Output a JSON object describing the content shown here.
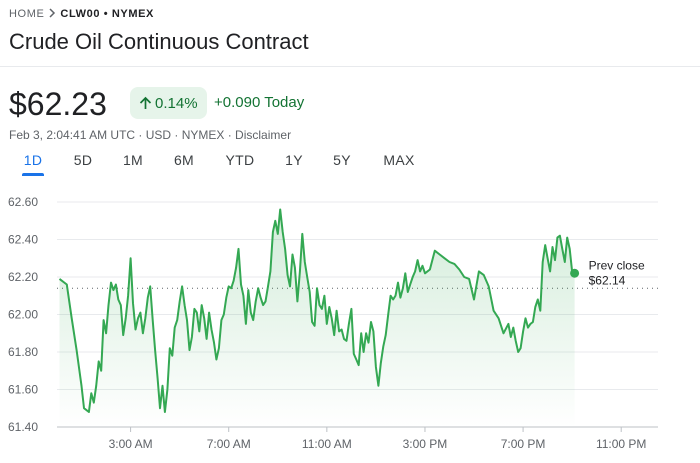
{
  "breadcrumb": {
    "home": "HOME",
    "separator_icon": "chevron-right-icon",
    "symbol": "CLW00 • NYMEX"
  },
  "title": "Crude Oil Continuous Contract",
  "quote": {
    "price": "$62.23",
    "change_percent": "0.14%",
    "change_direction_icon": "arrow-up-icon",
    "change_value": "+0.090",
    "change_period": "Today",
    "meta": "Feb 3, 2:04:41 AM UTC · USD · NYMEX · Disclaimer"
  },
  "tabs": [
    "1D",
    "5D",
    "1M",
    "6M",
    "YTD",
    "1Y",
    "5Y",
    "MAX"
  ],
  "active_tab": "1D",
  "colors": {
    "up": "#137333",
    "line": "#34a853",
    "accent": "#1a73e8",
    "badge_bg": "#e6f4ea"
  },
  "chart_data": {
    "type": "area",
    "y_ticks": [
      "62.60",
      "62.40",
      "62.20",
      "62.00",
      "61.80",
      "61.60",
      "61.40"
    ],
    "ylim": [
      61.4,
      62.6
    ],
    "x_ticks": [
      "3:00 AM",
      "7:00 AM",
      "11:00 AM",
      "3:00 PM",
      "7:00 PM",
      "11:00 PM"
    ],
    "x_tick_hours": [
      3,
      7,
      11,
      15,
      19,
      23
    ],
    "xlim_hours": [
      0,
      24.5
    ],
    "grid": true,
    "prev_close": {
      "label": "Prev close",
      "value": 62.14,
      "value_text": "$62.14"
    },
    "series": [
      {
        "x": [
          0.1,
          0.4,
          0.6,
          0.8,
          1.0,
          1.1,
          1.3,
          1.4,
          1.5,
          1.6,
          1.7,
          1.8,
          1.9,
          2.0,
          2.1,
          2.2,
          2.3,
          2.4,
          2.5,
          2.6,
          2.7,
          2.8,
          2.9,
          3.0,
          3.1,
          3.2,
          3.3,
          3.4,
          3.5,
          3.6,
          3.7,
          3.8,
          3.9,
          4.0,
          4.1,
          4.2,
          4.3,
          4.4,
          4.5,
          4.6,
          4.7,
          4.8,
          4.9,
          5.0,
          5.1,
          5.2,
          5.3,
          5.4,
          5.5,
          5.6,
          5.7,
          5.8,
          5.9,
          6.0,
          6.1,
          6.2,
          6.3,
          6.4,
          6.5,
          6.6,
          6.7,
          6.8,
          6.9,
          7.0,
          7.1,
          7.2,
          7.3,
          7.4,
          7.5,
          7.6,
          7.7,
          7.8,
          7.9,
          8.0,
          8.1,
          8.2,
          8.3,
          8.4,
          8.5,
          8.6,
          8.7,
          8.8,
          8.9,
          9.0,
          9.1,
          9.2,
          9.3,
          9.4,
          9.5,
          9.6,
          9.7,
          9.8,
          9.9,
          10.0,
          10.1,
          10.2,
          10.3,
          10.4,
          10.5,
          10.6,
          10.7,
          10.8,
          10.9,
          11.0,
          11.1,
          11.2,
          11.3,
          11.4,
          11.5,
          11.6,
          11.7,
          11.8,
          11.9,
          12.0,
          12.1,
          12.2,
          12.3,
          12.4,
          12.5,
          12.6,
          12.7,
          12.8,
          12.9,
          13.0,
          13.1,
          13.2,
          13.3,
          13.4,
          13.5,
          13.6,
          13.7,
          13.8,
          13.9,
          14.0,
          14.1,
          14.2,
          14.3,
          14.4,
          14.5,
          14.6,
          14.7,
          14.8,
          14.9,
          15.0,
          15.2,
          15.4,
          15.6,
          15.8,
          16.0,
          16.2,
          16.4,
          16.6,
          16.8,
          17.0,
          17.2,
          17.4,
          17.6,
          17.8,
          18.0,
          18.2,
          18.4,
          18.5,
          18.6,
          18.7,
          18.8,
          18.9,
          19.0,
          19.1,
          19.2,
          19.3,
          19.4,
          19.5,
          19.6,
          19.7,
          19.8,
          19.9,
          20.0,
          20.1,
          20.2,
          20.3,
          20.4,
          20.5,
          20.6,
          20.7,
          20.8,
          20.9,
          21.0,
          21.1
        ],
        "values": [
          62.19,
          62.16,
          61.98,
          61.81,
          61.62,
          61.5,
          61.48,
          61.58,
          61.53,
          61.62,
          61.75,
          61.7,
          61.97,
          61.9,
          62.05,
          62.17,
          62.13,
          62.16,
          62.08,
          62.05,
          61.89,
          61.98,
          62.1,
          62.3,
          62.06,
          61.92,
          61.98,
          62.01,
          61.9,
          61.98,
          62.09,
          62.15,
          61.97,
          61.81,
          61.66,
          61.5,
          61.62,
          61.48,
          61.6,
          61.82,
          61.78,
          61.93,
          61.97,
          62.07,
          62.15,
          62.05,
          61.97,
          61.81,
          61.88,
          62.03,
          62.01,
          61.91,
          62.05,
          61.98,
          61.87,
          62.01,
          61.92,
          61.85,
          61.76,
          61.82,
          61.97,
          62.0,
          62.09,
          62.15,
          62.14,
          62.18,
          62.25,
          62.35,
          62.16,
          62.1,
          61.95,
          62.13,
          62.01,
          61.97,
          62.07,
          62.14,
          62.09,
          62.05,
          62.07,
          62.15,
          62.23,
          62.44,
          62.5,
          62.43,
          62.56,
          62.44,
          62.35,
          62.21,
          62.15,
          62.32,
          62.25,
          62.07,
          62.23,
          62.43,
          62.28,
          62.2,
          62.12,
          61.96,
          61.94,
          62.14,
          62.05,
          62.03,
          62.1,
          61.95,
          62.04,
          61.98,
          61.89,
          62.02,
          61.91,
          61.92,
          61.87,
          61.86,
          61.95,
          62.03,
          61.79,
          61.76,
          61.73,
          61.9,
          61.8,
          61.9,
          61.85,
          61.96,
          61.91,
          61.72,
          61.62,
          61.74,
          61.83,
          61.89,
          62.0,
          62.1,
          62.08,
          62.1,
          62.17,
          62.09,
          62.14,
          62.22,
          62.12,
          62.16,
          62.2,
          62.23,
          62.29,
          62.23,
          62.26,
          62.22,
          62.24,
          62.34,
          62.32,
          62.3,
          62.28,
          62.27,
          62.24,
          62.2,
          62.19,
          62.08,
          62.23,
          62.21,
          62.15,
          62.02,
          61.98,
          61.9,
          61.95,
          61.88,
          61.93,
          61.86,
          61.8,
          61.82,
          61.91,
          61.98,
          61.93,
          61.95,
          61.96,
          62.04,
          62.08,
          62.02,
          62.28,
          62.37,
          62.3,
          62.23,
          62.36,
          62.29,
          62.41,
          62.42,
          62.35,
          62.28,
          62.41,
          62.35,
          62.23,
          62.22
        ]
      }
    ]
  }
}
